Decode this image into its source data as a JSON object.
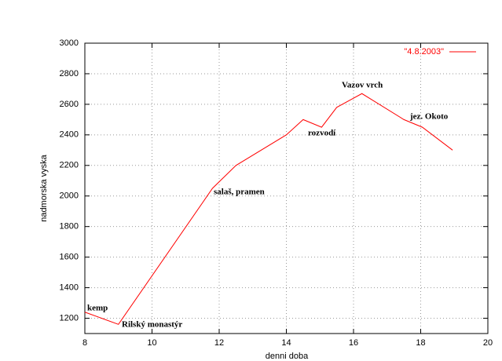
{
  "chart_data": {
    "type": "line",
    "x_label": "denni doba",
    "y_label": "nadmorska vyska",
    "xlim": [
      8,
      20
    ],
    "xticks": [
      8,
      10,
      12,
      14,
      16,
      18,
      20
    ],
    "ylim": [
      1100,
      3000
    ],
    "yticks": [
      1200,
      1400,
      1600,
      1800,
      2000,
      2200,
      2400,
      2600,
      2800,
      3000
    ],
    "grid": true,
    "legend": "top-right",
    "series": [
      {
        "name": "\"4.8.2003\"",
        "color": "#ff0000",
        "x": [
          8,
          9,
          11.8,
          12.5,
          14,
          14.5,
          15.05,
          15.5,
          16.25,
          17.5,
          18.05,
          18.95
        ],
        "values": [
          1240,
          1160,
          2050,
          2200,
          2400,
          2500,
          2450,
          2580,
          2670,
          2500,
          2450,
          2300
        ]
      }
    ],
    "annotations": [
      "kemp",
      "Rilský monastýr",
      "salaš, pramen",
      "rozvodí",
      "Vazov vrch",
      "jez. Okoto"
    ]
  }
}
